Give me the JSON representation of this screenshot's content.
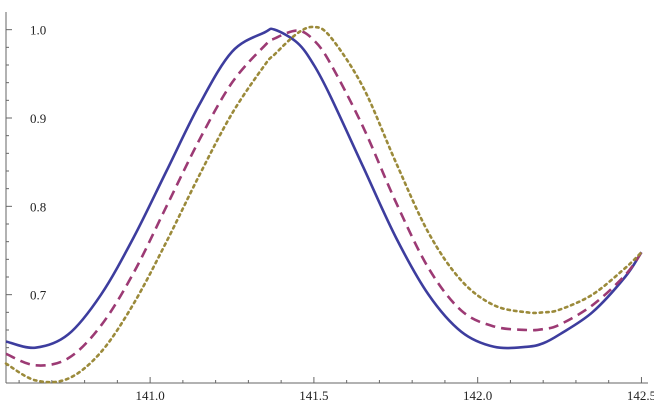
{
  "chart_data": {
    "type": "line",
    "title": "",
    "xlabel": "",
    "ylabel": "",
    "xlim": [
      140.56,
      142.52
    ],
    "ylim": [
      0.6,
      1.02
    ],
    "x_ticks": [
      141.0,
      141.5,
      142.0,
      142.5
    ],
    "x_tick_labels": [
      "141.0",
      "141.5",
      "142.0",
      "142.5"
    ],
    "y_ticks": [
      0.7,
      0.8,
      0.9,
      1.0
    ],
    "y_tick_labels": [
      "0.7",
      "0.8",
      "0.9",
      "1.0"
    ],
    "grid": false,
    "legend": "none",
    "x": [
      140.56,
      140.65,
      140.75,
      140.85,
      140.95,
      141.05,
      141.15,
      141.25,
      141.35,
      141.38,
      141.45,
      141.5,
      141.55,
      141.65,
      141.75,
      141.85,
      141.95,
      142.05,
      142.15,
      142.2,
      142.25,
      142.35,
      142.45,
      142.5
    ],
    "series": [
      {
        "style": "solid",
        "color": "#3d3d9e",
        "values": [
          0.647,
          0.64,
          0.655,
          0.7,
          0.765,
          0.84,
          0.915,
          0.975,
          0.997,
          1.0,
          0.985,
          0.96,
          0.925,
          0.845,
          0.765,
          0.7,
          0.658,
          0.641,
          0.641,
          0.645,
          0.655,
          0.68,
          0.72,
          0.748
        ]
      },
      {
        "style": "dashed",
        "color": "#9c3a74",
        "values": [
          0.633,
          0.62,
          0.628,
          0.665,
          0.725,
          0.8,
          0.875,
          0.94,
          0.982,
          0.99,
          0.999,
          0.988,
          0.962,
          0.89,
          0.805,
          0.73,
          0.682,
          0.664,
          0.66,
          0.661,
          0.666,
          0.688,
          0.722,
          0.748
        ]
      },
      {
        "style": "dotted",
        "color": "#9b8a3a",
        "values": [
          0.622,
          0.603,
          0.605,
          0.635,
          0.69,
          0.76,
          0.835,
          0.905,
          0.96,
          0.972,
          0.996,
          1.003,
          0.992,
          0.935,
          0.85,
          0.77,
          0.716,
          0.688,
          0.68,
          0.68,
          0.683,
          0.7,
          0.73,
          0.748
        ]
      }
    ]
  }
}
